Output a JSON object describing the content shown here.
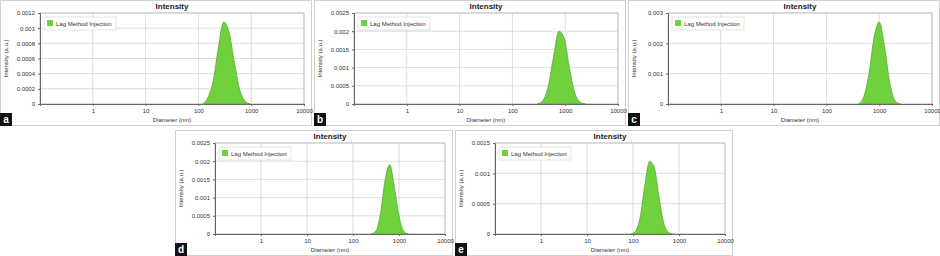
{
  "chart_data": [
    {
      "type": "area",
      "title": "Intensity",
      "annotation": "a",
      "x_label": "Diameter (nm)",
      "y_label": "Intensity (a.u.)",
      "log": "x",
      "grid": true,
      "legend": "upper left",
      "xlim": [
        0.1,
        10000
      ],
      "xticks": [
        1,
        10,
        100,
        1000,
        10000
      ],
      "ylim": [
        0,
        0.0012
      ],
      "yticks": [
        0,
        0.0002,
        0.0004,
        0.0006,
        0.0008,
        0.001,
        0.0012
      ],
      "x": [
        120,
        150,
        190,
        240,
        300,
        380,
        480,
        600,
        760,
        960
      ],
      "series": [
        {
          "name": "Lag Method Injection",
          "color": "#6fd23c",
          "values": [
            0,
            8e-05,
            0.0003,
            0.00075,
            0.00108,
            0.00095,
            0.00055,
            0.0002,
            4e-05,
            0
          ]
        }
      ]
    },
    {
      "type": "area",
      "title": "Intensity",
      "annotation": "b",
      "x_label": "Diameter (nm)",
      "y_label": "Intensity (a.u.)",
      "log": "x",
      "grid": true,
      "legend": "upper left",
      "xlim": [
        0.1,
        10000
      ],
      "xticks": [
        1,
        10,
        100,
        1000,
        10000
      ],
      "ylim": [
        0,
        0.0025
      ],
      "yticks": [
        0,
        0.0005,
        0.001,
        0.0015,
        0.002,
        0.0025
      ],
      "x": [
        300,
        380,
        480,
        600,
        760,
        960,
        1200,
        1520,
        1920,
        2400
      ],
      "series": [
        {
          "name": "Lag Method Injection",
          "color": "#6fd23c",
          "values": [
            0,
            0.0001,
            0.0005,
            0.0013,
            0.002,
            0.0018,
            0.001,
            0.0003,
            5e-05,
            0
          ]
        }
      ]
    },
    {
      "type": "area",
      "title": "Intensity",
      "annotation": "c",
      "x_label": "Diameter (nm)",
      "y_label": "Intensity (a.u.)",
      "log": "x",
      "grid": true,
      "legend": "upper left",
      "xlim": [
        0.1,
        10000
      ],
      "xticks": [
        1,
        10,
        100,
        1000,
        10000
      ],
      "ylim": [
        0,
        0.003
      ],
      "yticks": [
        0,
        0.001,
        0.002,
        0.003
      ],
      "x": [
        400,
        500,
        640,
        800,
        1000,
        1260,
        1590,
        2000,
        2520
      ],
      "series": [
        {
          "name": "Lag Method Injection",
          "color": "#6fd23c",
          "values": [
            0,
            0.0002,
            0.001,
            0.0022,
            0.0027,
            0.0019,
            0.0007,
            0.0001,
            0
          ]
        }
      ]
    },
    {
      "type": "area",
      "title": "Intensity",
      "annotation": "d",
      "x_label": "Diameter (nm)",
      "y_label": "Intensity (a.u.)",
      "log": "x",
      "grid": true,
      "legend": "upper left",
      "xlim": [
        0.1,
        10000
      ],
      "xticks": [
        1,
        10,
        100,
        1000,
        10000
      ],
      "ylim": [
        0,
        0.0025
      ],
      "yticks": [
        0,
        0.0005,
        0.001,
        0.0015,
        0.002,
        0.0025
      ],
      "x": [
        250,
        320,
        400,
        500,
        630,
        790,
        1000,
        1260,
        1580
      ],
      "series": [
        {
          "name": "Lag Method Injection",
          "color": "#6fd23c",
          "values": [
            0,
            0.0001,
            0.0006,
            0.0015,
            0.0019,
            0.0013,
            0.0005,
            8e-05,
            0
          ]
        }
      ]
    },
    {
      "type": "area",
      "title": "Intensity",
      "annotation": "e",
      "x_label": "Diameter (nm)",
      "y_label": "Intensity (a.u.)",
      "log": "x",
      "grid": true,
      "legend": "upper left",
      "xlim": [
        0.1,
        10000
      ],
      "xticks": [
        1,
        10,
        100,
        1000,
        10000
      ],
      "ylim": [
        0,
        0.0015
      ],
      "yticks": [
        0,
        0.0005,
        0.001,
        0.0015
      ],
      "x": [
        90,
        115,
        145,
        180,
        230,
        290,
        370,
        460,
        580,
        730
      ],
      "series": [
        {
          "name": "Lag Method Injection",
          "color": "#6fd23c",
          "values": [
            0,
            5e-05,
            0.0003,
            0.0008,
            0.0012,
            0.0011,
            0.0006,
            0.0002,
            3e-05,
            0
          ]
        }
      ]
    }
  ]
}
